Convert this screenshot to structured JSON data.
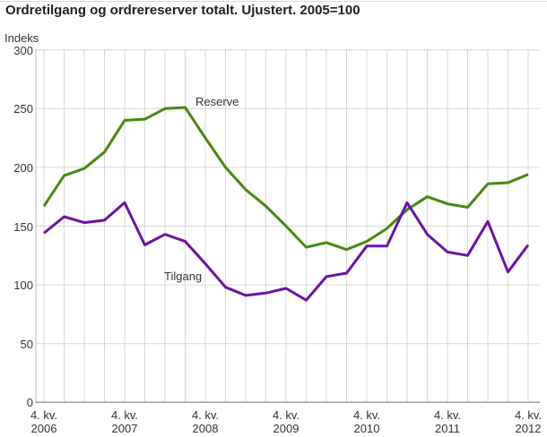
{
  "chart": {
    "title": "Ordretilgang og ordrereserver totalt. Ujustert. 2005=100",
    "y_axis_unit_label": "Indeks"
  },
  "chart_data": {
    "type": "line",
    "title": "Ordretilgang og ordrereserver totalt. Ujustert. 2005=100",
    "xlabel": "",
    "ylabel": "Indeks",
    "ylim": [
      0,
      300
    ],
    "y_ticks": [
      300,
      250,
      200,
      150,
      100,
      50,
      0
    ],
    "grid": true,
    "legend_position": "inline-labels",
    "x_unit": "quarter",
    "n_points": 25,
    "x_range_description": "quarterly points from 4. kv. 2006 to 4. kv. 2012",
    "x_tick_labels": [
      {
        "index": 0,
        "line1": "4. kv.",
        "line2": "2006"
      },
      {
        "index": 4,
        "line1": "4. kv.",
        "line2": "2007"
      },
      {
        "index": 8,
        "line1": "4. kv.",
        "line2": "2008"
      },
      {
        "index": 12,
        "line1": "4. kv.",
        "line2": "2009"
      },
      {
        "index": 16,
        "line1": "4. kv.",
        "line2": "2010"
      },
      {
        "index": 20,
        "line1": "4. kv.",
        "line2": "2011"
      },
      {
        "index": 24,
        "line1": "4. kv.",
        "line2": "2012"
      }
    ],
    "series": [
      {
        "name": "Reserve",
        "color": "#45890D",
        "values": [
          167,
          193,
          199,
          213,
          240,
          241,
          250,
          251,
          225,
          200,
          181,
          167,
          150,
          132,
          136,
          130,
          137,
          148,
          164,
          175,
          169,
          166,
          186,
          187,
          194
        ]
      },
      {
        "name": "Tilgang",
        "color": "#6C12A0",
        "values": [
          144,
          158,
          153,
          155,
          170,
          134,
          143,
          137,
          118,
          98,
          91,
          93,
          97,
          87,
          107,
          110,
          133,
          133,
          170,
          143,
          128,
          125,
          154,
          111,
          134
        ]
      }
    ],
    "colors": {
      "grid": "#d7d7d7",
      "x_axis": "#9e9e9e",
      "y_axis": "#bdbdbd",
      "text": "#333333",
      "title": "#1f1f1f"
    }
  }
}
